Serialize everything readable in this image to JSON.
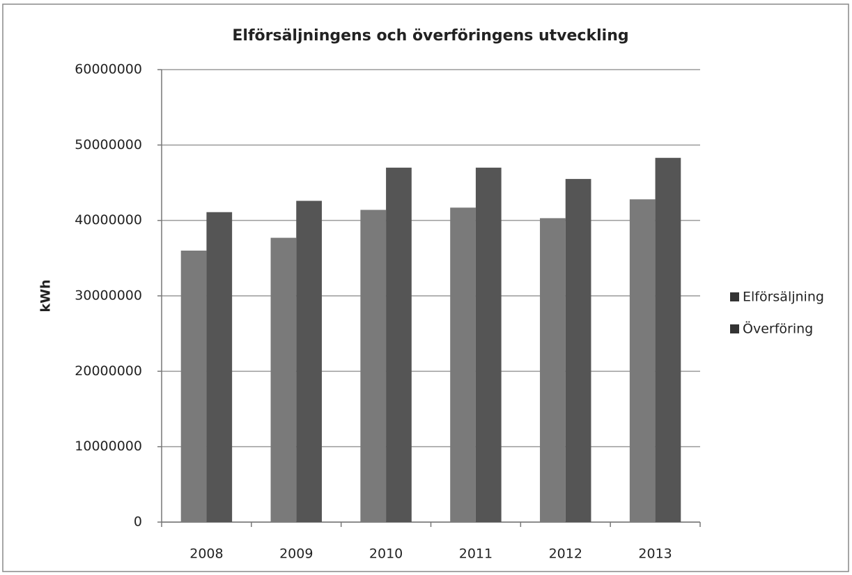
{
  "chart_data": {
    "type": "bar",
    "title": "Elförsäljningens och överföringens utveckling",
    "ylabel": "kWh",
    "categories": [
      "2008",
      "2009",
      "2010",
      "2011",
      "2012",
      "2013"
    ],
    "series": [
      {
        "name": "Elförsäljning",
        "color": "#7a7a7a",
        "values": [
          36000000,
          37700000,
          41400000,
          41700000,
          40300000,
          42800000
        ]
      },
      {
        "name": "Överföring",
        "color": "#555555",
        "values": [
          41100000,
          42600000,
          47000000,
          47000000,
          45500000,
          48300000
        ]
      }
    ],
    "ylim": [
      0,
      60000000
    ],
    "yticks": [
      0,
      10000000,
      20000000,
      30000000,
      40000000,
      50000000,
      60000000
    ],
    "grid": true,
    "legend": "right"
  }
}
